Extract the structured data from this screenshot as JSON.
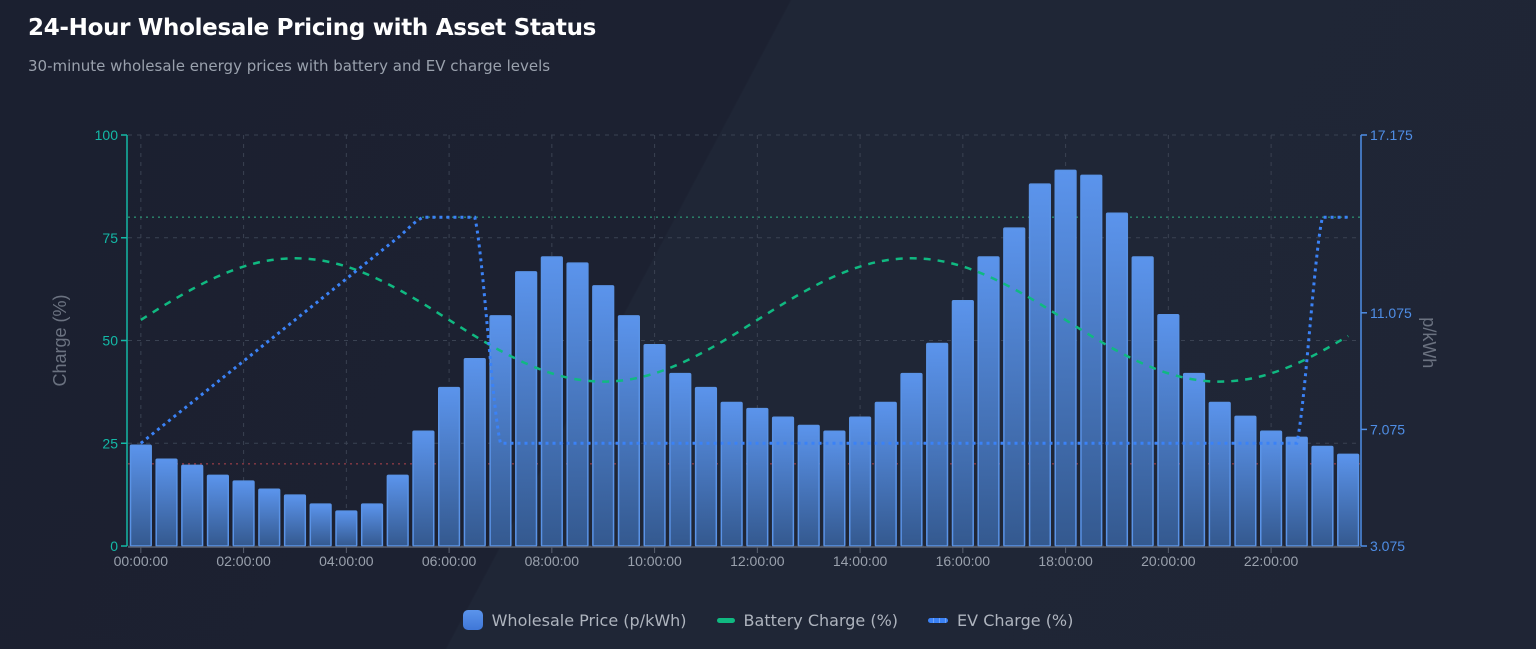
{
  "header": {
    "title": "24-Hour Wholesale Pricing with Asset Status",
    "subtitle": "30-minute wholesale energy prices with battery and EV charge levels"
  },
  "legend": {
    "items": [
      {
        "label": "Wholesale Price (p/kWh)",
        "type": "bar",
        "color": "#4a86e4"
      },
      {
        "label": "Battery Charge (%)",
        "type": "line",
        "color": "#10b981"
      },
      {
        "label": "EV Charge (%)",
        "type": "dots",
        "color": "#3b82f6"
      }
    ]
  },
  "colors": {
    "bar_top": "#5b94ec",
    "bar_bottom": "#34598f",
    "bar_border": "#5a93e6",
    "battery": "#10b981",
    "ev": "#3b82f6",
    "left_axis": "#14b8a6",
    "right_axis": "#4f8ee6",
    "grid": "#3a4252",
    "ref_high": "#2b8a6e",
    "ref_low": "#8a3a44",
    "tick_label": "#9aa1ad"
  },
  "chart_data": {
    "type": "bar",
    "title": "24-Hour Wholesale Pricing with Asset Status",
    "subtitle": "30-minute wholesale energy prices with battery and EV charge levels",
    "xlabel": "",
    "ylabel_left": "Charge (%)",
    "ylabel_right": "p/kWh",
    "ylim_left": [
      0,
      100
    ],
    "ylim_right": [
      3.075,
      17.175
    ],
    "yticks_left": [
      "0",
      "25",
      "50",
      "75",
      "100"
    ],
    "yticks_right": [
      "3.075",
      "7.075",
      "11.075",
      "17.175"
    ],
    "xticks": [
      "00:00:00",
      "02:00:00",
      "04:00:00",
      "06:00:00",
      "08:00:00",
      "10:00:00",
      "12:00:00",
      "14:00:00",
      "16:00:00",
      "18:00:00",
      "20:00:00",
      "22:00:00"
    ],
    "grid": true,
    "legend_position": "bottom",
    "reference_lines": [
      {
        "axis": "left",
        "value": 80,
        "style": "dotted",
        "color": "#2b8a6e"
      },
      {
        "axis": "left",
        "value": 20,
        "style": "dotted",
        "color": "#8a3a44"
      }
    ],
    "categories": [
      "00:00",
      "00:30",
      "01:00",
      "01:30",
      "02:00",
      "02:30",
      "03:00",
      "03:30",
      "04:00",
      "04:30",
      "05:00",
      "05:30",
      "06:00",
      "06:30",
      "07:00",
      "07:30",
      "08:00",
      "08:30",
      "09:00",
      "09:30",
      "10:00",
      "10:30",
      "11:00",
      "11:30",
      "12:00",
      "12:30",
      "13:00",
      "13:30",
      "14:00",
      "14:30",
      "15:00",
      "15:30",
      "16:00",
      "16:30",
      "17:00",
      "17:30",
      "18:00",
      "18:30",
      "19:00",
      "19:30",
      "20:00",
      "20:30",
      "21:00",
      "21:30",
      "22:00",
      "22:30",
      "23:00",
      "23:30"
    ],
    "series": [
      {
        "name": "Wholesale Price (p/kWh)",
        "type": "bar",
        "axis": "right",
        "values": [
          6.53,
          6.05,
          5.84,
          5.5,
          5.3,
          5.02,
          4.82,
          4.51,
          4.27,
          4.51,
          5.5,
          7.01,
          8.51,
          9.5,
          10.97,
          12.48,
          12.99,
          12.78,
          12.0,
          10.97,
          9.98,
          8.99,
          8.51,
          8.0,
          7.79,
          7.49,
          7.21,
          7.01,
          7.49,
          8.0,
          8.99,
          10.02,
          11.49,
          12.99,
          13.98,
          15.49,
          15.96,
          15.79,
          14.49,
          12.99,
          11.01,
          8.99,
          8.0,
          7.52,
          7.01,
          6.8,
          6.49,
          6.22
        ]
      },
      {
        "name": "Battery Charge (%)",
        "type": "line",
        "style": "dashed",
        "axis": "left",
        "values": [
          55.0,
          58.9,
          62.5,
          65.6,
          68.0,
          69.5,
          70.0,
          69.5,
          68.0,
          65.6,
          62.5,
          58.9,
          55.0,
          51.1,
          47.5,
          44.4,
          42.0,
          40.5,
          40.0,
          40.5,
          42.0,
          44.4,
          47.5,
          51.1,
          55.0,
          58.9,
          62.5,
          65.6,
          68.0,
          69.5,
          70.0,
          69.5,
          68.0,
          65.6,
          62.5,
          58.9,
          55.0,
          51.1,
          47.5,
          44.4,
          42.0,
          40.5,
          40.0,
          40.5,
          42.0,
          44.4,
          47.5,
          51.1
        ]
      },
      {
        "name": "EV Charge (%)",
        "type": "line",
        "style": "dotted",
        "axis": "left",
        "values": [
          25,
          30,
          35,
          40,
          45,
          50,
          55,
          60,
          65,
          70,
          75,
          80,
          80,
          80,
          25,
          25,
          25,
          25,
          25,
          25,
          25,
          25,
          25,
          25,
          25,
          25,
          25,
          25,
          25,
          25,
          25,
          25,
          25,
          25,
          25,
          25,
          25,
          25,
          25,
          25,
          25,
          25,
          25,
          25,
          25,
          25,
          80,
          80
        ]
      }
    ]
  }
}
